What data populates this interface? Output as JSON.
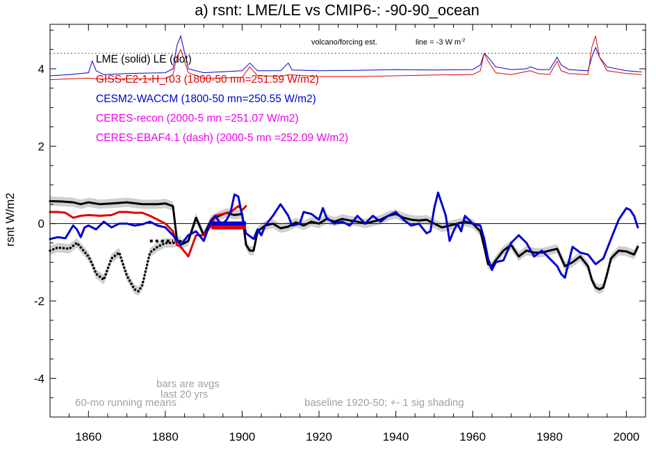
{
  "chart_data": {
    "type": "line",
    "title": "a) rsnt: LME/LE vs CMIP6-: -90-90_ocean",
    "ylabel": "rsnt W/m2",
    "xlabel": "",
    "xlim": [
      1850,
      2005
    ],
    "ylim": [
      -5,
      5.15
    ],
    "x_ticks": [
      1860,
      1880,
      1900,
      1920,
      1940,
      1960,
      1980,
      2000
    ],
    "y_ticks": [
      -4,
      -2,
      0,
      2,
      4
    ],
    "grid": false,
    "legend_placement": "top-left",
    "legend": [
      {
        "text": "LME (solid)   LE (dot)",
        "color": "#000000"
      },
      {
        "text": "GISS-E2-1-H_r03 (1800-50 mn=251.59 W/m2)",
        "color": "#e00000"
      },
      {
        "text": "CESM2-WACCM (1800-50 mn=250.55 W/m2)",
        "color": "#0000d0"
      },
      {
        "text": "CERES-recon (2000-5 mn =251.07 W/m2)",
        "color": "#ee00ee"
      },
      {
        "text": "CERES-EBAF4.1 (dash) (2000-5 mn =252.09 W/m2)",
        "color": "#ee00ee"
      }
    ],
    "annotations": {
      "volcano": "volcano/forcing est.",
      "line_scale": "line = -3 W m",
      "line_scale_sup": "-2",
      "bars_note_1": "bars are avgs",
      "bars_note_2": "last 20 yrs",
      "running_mean": "60-mo running means",
      "baseline": "baseline 1920-50; +- 1 sig shading"
    },
    "reference_lines": {
      "zero": 0,
      "volcano_baseline": 4.4
    },
    "series": [
      {
        "name": "LME (solid)",
        "color": "#000000",
        "style": "solid",
        "x": [
          1850,
          1853,
          1856,
          1858,
          1860,
          1863,
          1866,
          1870,
          1874,
          1878,
          1880,
          1882,
          1883,
          1884,
          1886,
          1888,
          1890,
          1892,
          1894,
          1896,
          1898,
          1900,
          1901,
          1902,
          1903,
          1904,
          1906,
          1908,
          1910,
          1912,
          1914,
          1916,
          1918,
          1920,
          1922,
          1924,
          1926,
          1928,
          1930,
          1932,
          1934,
          1936,
          1938,
          1940,
          1942,
          1944,
          1946,
          1948,
          1950,
          1952,
          1954,
          1956,
          1958,
          1960,
          1962,
          1963,
          1964,
          1965,
          1966,
          1968,
          1970,
          1972,
          1974,
          1976,
          1978,
          1980,
          1982,
          1984,
          1986,
          1988,
          1990,
          1991,
          1992,
          1993,
          1994,
          1995,
          1996,
          1998,
          2000,
          2002,
          2003
        ],
        "y": [
          0.58,
          0.57,
          0.55,
          0.5,
          0.55,
          0.5,
          0.52,
          0.55,
          0.5,
          0.5,
          0.52,
          0.45,
          -0.4,
          -0.55,
          -0.45,
          0.15,
          -0.3,
          0.1,
          0.2,
          0.28,
          0.22,
          0.25,
          -0.55,
          -0.7,
          -0.7,
          -0.2,
          -0.05,
          0.0,
          -0.12,
          -0.08,
          0.03,
          -0.05,
          0.05,
          0.0,
          0.12,
          0.05,
          0.12,
          0.08,
          0.05,
          0.0,
          0.05,
          0.1,
          0.2,
          0.25,
          0.15,
          0.1,
          0.08,
          0.1,
          0.0,
          -0.1,
          -0.05,
          0.0,
          0.05,
          0.0,
          -0.2,
          -0.6,
          -1.05,
          -1.1,
          -0.95,
          -0.7,
          -0.55,
          -0.85,
          -0.7,
          -0.75,
          -0.75,
          -0.7,
          -0.65,
          -1.1,
          -1.0,
          -0.85,
          -1.1,
          -1.45,
          -1.65,
          -1.7,
          -1.65,
          -1.3,
          -0.9,
          -0.7,
          -0.72,
          -0.8,
          -0.6
        ]
      },
      {
        "name": "LE (dot)",
        "color": "#000000",
        "style": "dotted",
        "x": [
          1850,
          1852,
          1855,
          1857,
          1860,
          1861,
          1862,
          1864,
          1866,
          1868,
          1870,
          1872,
          1873,
          1874,
          1876,
          1878,
          1880,
          1882,
          1884
        ],
        "y": [
          -0.7,
          -0.62,
          -0.65,
          -0.5,
          -0.85,
          -1.05,
          -1.3,
          -1.45,
          -0.9,
          -0.75,
          -1.35,
          -1.7,
          -1.75,
          -1.6,
          -0.75,
          -0.6,
          -0.5,
          -0.5,
          -0.45
        ]
      },
      {
        "name": "GISS-E2-1-H_r03",
        "color": "#e00000",
        "style": "solid",
        "x": [
          1850,
          1852,
          1854,
          1856,
          1858,
          1860,
          1863,
          1866,
          1868,
          1870,
          1872,
          1874,
          1876,
          1878,
          1880,
          1882,
          1883,
          1884,
          1886,
          1888,
          1890,
          1892,
          1893,
          1895,
          1897,
          1899,
          1900,
          1901
        ],
        "y": [
          0.3,
          0.3,
          0.28,
          0.15,
          0.2,
          0.22,
          0.2,
          0.22,
          0.3,
          0.3,
          0.28,
          0.28,
          0.2,
          0.1,
          0.0,
          -0.2,
          -0.55,
          -0.6,
          -0.85,
          -0.3,
          -0.3,
          -0.05,
          0.2,
          0.25,
          0.3,
          0.45,
          0.35,
          0.45
        ]
      },
      {
        "name": "CESM2-WACCM",
        "color": "#0000d0",
        "style": "solid",
        "x": [
          1850,
          1852,
          1854,
          1856,
          1857,
          1858,
          1859,
          1860,
          1862,
          1864,
          1866,
          1868,
          1870,
          1872,
          1874,
          1876,
          1878,
          1880,
          1882,
          1884,
          1886,
          1888,
          1890,
          1892,
          1893,
          1894,
          1895,
          1896,
          1897,
          1898,
          1899,
          1900,
          1901,
          1903,
          1904,
          1905,
          1906,
          1908,
          1910,
          1911,
          1912,
          1913,
          1915,
          1916,
          1918,
          1920,
          1921,
          1922,
          1924,
          1926,
          1928,
          1930,
          1932,
          1934,
          1936,
          1938,
          1940,
          1942,
          1944,
          1946,
          1948,
          1949,
          1950,
          1951,
          1952,
          1953,
          1954,
          1955,
          1956,
          1957,
          1958,
          1960,
          1962,
          1963,
          1964,
          1965,
          1966,
          1968,
          1970,
          1972,
          1974,
          1976,
          1978,
          1980,
          1982,
          1983,
          1984,
          1985,
          1986,
          1988,
          1990,
          1992,
          1994,
          1996,
          1998,
          2000,
          2001,
          2002,
          2003
        ],
        "y": [
          -0.4,
          -0.35,
          -0.38,
          -0.05,
          -0.15,
          -0.35,
          -0.1,
          -0.05,
          -0.15,
          0.05,
          -0.1,
          0.0,
          0.0,
          -0.05,
          -0.02,
          0.05,
          -0.05,
          -0.1,
          -0.3,
          -0.55,
          -0.3,
          -0.2,
          -0.45,
          0.1,
          0.2,
          0.05,
          0.0,
          0.1,
          0.3,
          0.75,
          0.7,
          0.2,
          -0.25,
          -0.4,
          -0.15,
          -0.3,
          -0.05,
          0.2,
          0.5,
          0.35,
          0.2,
          -0.05,
          0.0,
          0.3,
          0.25,
          0.1,
          0.4,
          0.15,
          0.0,
          0.05,
          -0.05,
          0.2,
          0.0,
          0.2,
          0.05,
          0.2,
          0.3,
          0.1,
          -0.05,
          0.0,
          -0.25,
          -0.2,
          0.4,
          0.8,
          0.5,
          0.2,
          -0.45,
          -0.2,
          0.0,
          -0.2,
          0.2,
          0.0,
          -0.05,
          -0.4,
          -0.9,
          -1.2,
          -1.0,
          -0.95,
          -0.5,
          -0.3,
          -0.5,
          -0.85,
          -0.7,
          -0.9,
          -1.1,
          -1.3,
          -1.4,
          -1.0,
          -0.6,
          -0.75,
          -0.8,
          -1.05,
          -0.9,
          -0.4,
          0.1,
          0.4,
          0.35,
          0.2,
          -0.1
        ]
      }
    ],
    "shading": {
      "color": "#cfcfcf",
      "series": [
        "LME (solid)",
        "LE (dot)"
      ],
      "halfwidth": 0.12
    },
    "bars": [
      {
        "series": "CESM2-WACCM",
        "x_range": [
          1892,
          1901
        ],
        "value": 0.0,
        "color": "#0000d0"
      },
      {
        "series": "GISS-E2-1-H_r03",
        "x_range": [
          1892,
          1901
        ],
        "value": -0.1,
        "color": "#e00000"
      },
      {
        "series": "LE (dot)",
        "x_range": [
          1876,
          1882
        ],
        "value": -0.45,
        "color": "#000000"
      }
    ],
    "forcing_lines": {
      "scale_w_m2": -3,
      "baseline": 4.4,
      "series": [
        {
          "name": "CESM2-WACCM forcing",
          "color": "#0000d0",
          "x": [
            1850,
            1855,
            1860,
            1861,
            1862,
            1864,
            1870,
            1880,
            1882,
            1883,
            1884,
            1886,
            1890,
            1900,
            1902,
            1904,
            1910,
            1912,
            1913,
            1920,
            1930,
            1940,
            1950,
            1960,
            1962,
            1963,
            1964,
            1966,
            1970,
            1974,
            1975,
            1977,
            1980,
            1982,
            1983,
            1985,
            1990,
            1991,
            1992,
            1993,
            1995,
            2000,
            2004
          ],
          "y": [
            3.82,
            3.85,
            3.9,
            4.2,
            3.95,
            3.85,
            3.88,
            3.9,
            4.0,
            4.6,
            4.85,
            4.0,
            3.9,
            3.95,
            4.15,
            3.95,
            3.95,
            4.15,
            3.97,
            3.95,
            3.96,
            3.98,
            3.97,
            3.98,
            4.1,
            4.4,
            4.3,
            4.05,
            3.98,
            4.0,
            4.05,
            3.98,
            3.98,
            4.3,
            4.1,
            3.98,
            3.95,
            4.3,
            4.55,
            4.3,
            4.05,
            3.95,
            3.92
          ]
        },
        {
          "name": "GISS-E2-1-H_r03 forcing",
          "color": "#e00000",
          "x": [
            1850,
            1855,
            1860,
            1862,
            1870,
            1880,
            1882,
            1883,
            1884,
            1886,
            1890,
            1900,
            1902,
            1904,
            1910,
            1912,
            1920,
            1930,
            1940,
            1950,
            1960,
            1962,
            1963,
            1964,
            1966,
            1970,
            1975,
            1977,
            1980,
            1982,
            1983,
            1985,
            1990,
            1991,
            1992,
            1993,
            1995,
            2000,
            2004
          ],
          "y": [
            3.72,
            3.74,
            3.76,
            3.74,
            3.74,
            3.75,
            3.85,
            4.3,
            4.5,
            3.9,
            3.75,
            3.78,
            4.05,
            3.82,
            3.8,
            3.85,
            3.8,
            3.8,
            3.82,
            3.84,
            3.85,
            3.95,
            4.4,
            4.2,
            3.9,
            3.85,
            3.95,
            3.88,
            3.85,
            4.2,
            3.95,
            3.88,
            3.85,
            4.55,
            4.85,
            4.3,
            3.95,
            3.88,
            3.85
          ]
        }
      ]
    }
  }
}
